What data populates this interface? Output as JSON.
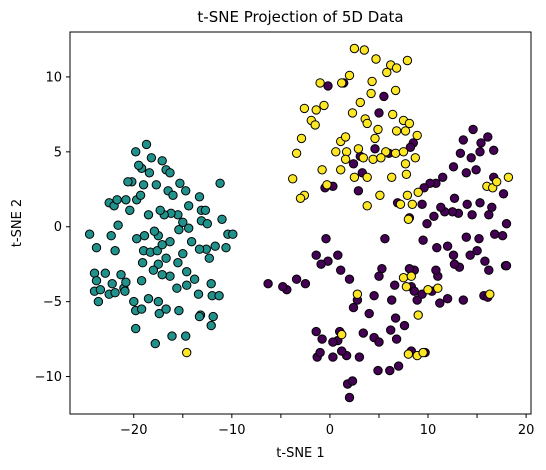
{
  "chart_data": {
    "type": "scatter",
    "title": "t-SNE Projection of 5D Data",
    "xlabel": "t-SNE 1",
    "ylabel": "t-SNE 2",
    "xlim": [
      -26.5,
      20.5
    ],
    "ylim": [
      -12.5,
      13.0
    ],
    "xticks": [
      -20,
      -15,
      -10,
      -5,
      0,
      5,
      10,
      15,
      20
    ],
    "xtick_labels": [
      "−20",
      "",
      "−10",
      "",
      "0",
      "",
      "10",
      "",
      "20"
    ],
    "yticks": [
      -10,
      -5,
      0,
      5,
      10
    ],
    "ytick_labels": [
      "−10",
      "−5",
      "0",
      "5",
      "10"
    ],
    "grid": false,
    "legend": "none",
    "series": [
      {
        "color": "#440154",
        "points": [
          [
            2.0,
            -11.4
          ],
          [
            1.8,
            -10.5
          ],
          [
            2.3,
            -10.3
          ],
          [
            0.3,
            -8.7
          ],
          [
            1.7,
            -8.6
          ],
          [
            3.0,
            -8.7
          ],
          [
            4.9,
            -9.6
          ],
          [
            6.1,
            -9.6
          ],
          [
            7.0,
            -9.3
          ],
          [
            -1.3,
            -8.7
          ],
          [
            -1.0,
            -8.4
          ],
          [
            1.2,
            -8.3
          ],
          [
            0.8,
            -7.6
          ],
          [
            -1.4,
            -7.0
          ],
          [
            -0.8,
            -7.5
          ],
          [
            0.3,
            -7.7
          ],
          [
            1.0,
            -7.0
          ],
          [
            3.4,
            -7.1
          ],
          [
            4.5,
            -7.4
          ],
          [
            5.0,
            -7.7
          ],
          [
            6.8,
            -7.5
          ],
          [
            8.3,
            -8.3
          ],
          [
            9.7,
            -8.4
          ],
          [
            7.6,
            -6.6
          ],
          [
            6.2,
            -6.9
          ],
          [
            6.7,
            -6.1
          ],
          [
            4.0,
            -5.8
          ],
          [
            2.4,
            -5.4
          ],
          [
            2.8,
            -4.9
          ],
          [
            4.5,
            -4.6
          ],
          [
            6.3,
            -4.9
          ],
          [
            6.6,
            -3.9
          ],
          [
            8.3,
            -4.0
          ],
          [
            8.6,
            -4.3
          ],
          [
            8.9,
            -4.9
          ],
          [
            9.4,
            -4.5
          ],
          [
            10.4,
            -4.3
          ],
          [
            11.2,
            -5.1
          ],
          [
            12.0,
            -4.8
          ],
          [
            13.6,
            -4.9
          ],
          [
            15.7,
            -4.6
          ],
          [
            16.1,
            -4.7
          ],
          [
            17.9,
            -2.6
          ],
          [
            18.0,
            -2.6
          ],
          [
            16.2,
            -2.9
          ],
          [
            15.8,
            -2.3
          ],
          [
            15.0,
            -1.6
          ],
          [
            14.3,
            -1.9
          ],
          [
            13.2,
            -2.7
          ],
          [
            12.7,
            -2.5
          ],
          [
            11.0,
            -3.3
          ],
          [
            10.8,
            -2.9
          ],
          [
            8.6,
            -2.9
          ],
          [
            8.1,
            -2.8
          ],
          [
            5.3,
            -2.8
          ],
          [
            5.0,
            -3.3
          ],
          [
            2.0,
            -3.5
          ],
          [
            1.1,
            -2.9
          ],
          [
            -0.2,
            -2.3
          ],
          [
            -0.9,
            -2.5
          ],
          [
            -1.4,
            -1.9
          ],
          [
            -0.4,
            -0.8
          ],
          [
            0.8,
            -1.9
          ],
          [
            5.6,
            -0.8
          ],
          [
            9.5,
            -0.9
          ],
          [
            10.9,
            -1.4
          ],
          [
            12.0,
            -1.3
          ],
          [
            12.6,
            -1.9
          ],
          [
            13.9,
            -0.7
          ],
          [
            15.2,
            -0.8
          ],
          [
            16.8,
            -0.5
          ],
          [
            17.6,
            -0.6
          ],
          [
            18.0,
            0.2
          ],
          [
            16.2,
            0.8
          ],
          [
            14.5,
            0.8
          ],
          [
            13.1,
            0.9
          ],
          [
            12.5,
            1.0
          ],
          [
            11.7,
            1.0
          ],
          [
            10.6,
            0.7
          ],
          [
            9.9,
            0.2
          ],
          [
            9.4,
            1.5
          ],
          [
            11.3,
            1.3
          ],
          [
            12.7,
            1.9
          ],
          [
            14.0,
            1.5
          ],
          [
            15.3,
            1.6
          ],
          [
            16.5,
            1.3
          ],
          [
            17.7,
            2.2
          ],
          [
            16.7,
            3.3
          ],
          [
            14.9,
            3.8
          ],
          [
            13.9,
            3.6
          ],
          [
            12.6,
            4.0
          ],
          [
            11.5,
            3.3
          ],
          [
            10.8,
            2.9
          ],
          [
            10.2,
            2.9
          ],
          [
            9.6,
            2.6
          ],
          [
            6.9,
            1.6
          ],
          [
            13.3,
            4.9
          ],
          [
            14.4,
            4.6
          ],
          [
            15.3,
            5.0
          ],
          [
            16.1,
            6.0
          ],
          [
            16.7,
            5.1
          ],
          [
            14.6,
            6.5
          ],
          [
            13.6,
            5.8
          ],
          [
            15.4,
            5.6
          ],
          [
            8.5,
            5.6
          ],
          [
            8.2,
            5.3
          ],
          [
            6.0,
            4.9
          ],
          [
            4.6,
            5.2
          ],
          [
            3.1,
            4.7
          ],
          [
            2.4,
            4.2
          ],
          [
            3.3,
            3.6
          ],
          [
            0.3,
            2.7
          ],
          [
            -0.5,
            2.6
          ],
          [
            2.9,
            2.4
          ],
          [
            8.1,
            0.6
          ],
          [
            -0.2,
            9.4
          ],
          [
            1.4,
            9.6
          ],
          [
            5.5,
            8.7
          ],
          [
            5.0,
            7.6
          ],
          [
            -3.4,
            -3.5
          ],
          [
            -2.5,
            -3.8
          ],
          [
            -4.4,
            -4.2
          ],
          [
            -4.8,
            -4.0
          ],
          [
            -6.3,
            -3.8
          ]
        ]
      },
      {
        "color": "#21918c",
        "points": [
          [
            -24.5,
            -0.5
          ],
          [
            -23.8,
            -1.4
          ],
          [
            -24.0,
            -3.1
          ],
          [
            -23.8,
            -3.6
          ],
          [
            -23.6,
            -5.0
          ],
          [
            -24.0,
            -4.3
          ],
          [
            -23.4,
            -4.2
          ],
          [
            -22.9,
            -3.1
          ],
          [
            -22.2,
            -3.8
          ],
          [
            -22.5,
            -4.5
          ],
          [
            -21.9,
            -4.4
          ],
          [
            -21.0,
            -4.1
          ],
          [
            -20.9,
            -4.3
          ],
          [
            -20.8,
            -3.7
          ],
          [
            -21.3,
            -3.2
          ],
          [
            -21.9,
            -1.6
          ],
          [
            -22.3,
            -0.6
          ],
          [
            -21.6,
            0.1
          ],
          [
            -22.5,
            1.6
          ],
          [
            -22.0,
            1.4
          ],
          [
            -21.7,
            1.8
          ],
          [
            -20.4,
            1.1
          ],
          [
            -20.8,
            1.8
          ],
          [
            -19.7,
            1.8
          ],
          [
            -19.3,
            2.1
          ],
          [
            -19.0,
            2.8
          ],
          [
            -19.2,
            3.9
          ],
          [
            -20.2,
            3.0
          ],
          [
            -20.6,
            3.0
          ],
          [
            -19.5,
            4.1
          ],
          [
            -19.8,
            5.0
          ],
          [
            -18.7,
            5.5
          ],
          [
            -18.2,
            4.6
          ],
          [
            -18.4,
            3.6
          ],
          [
            -17.1,
            4.4
          ],
          [
            -17.7,
            2.8
          ],
          [
            -16.7,
            3.8
          ],
          [
            -16.3,
            3.6
          ],
          [
            -16.5,
            2.4
          ],
          [
            -16.0,
            2.1
          ],
          [
            -15.3,
            2.9
          ],
          [
            -14.7,
            2.4
          ],
          [
            -14.4,
            1.4
          ],
          [
            -13.3,
            2.0
          ],
          [
            -13.1,
            1.1
          ],
          [
            -13.1,
            0.4
          ],
          [
            -12.7,
            1.1
          ],
          [
            -12.5,
            0.2
          ],
          [
            -11.2,
            2.9
          ],
          [
            -11.0,
            0.5
          ],
          [
            -10.4,
            -0.5
          ],
          [
            -9.9,
            -0.5
          ],
          [
            -10.6,
            -1.4
          ],
          [
            -11.7,
            -1.3
          ],
          [
            -12.3,
            -2.1
          ],
          [
            -12.6,
            -1.5
          ],
          [
            -13.3,
            -1.5
          ],
          [
            -14.1,
            -1.0
          ],
          [
            -14.4,
            -0.1
          ],
          [
            -15.0,
            0.3
          ],
          [
            -15.4,
            -0.2
          ],
          [
            -15.5,
            0.8
          ],
          [
            -16.2,
            0.9
          ],
          [
            -16.9,
            0.8
          ],
          [
            -17.3,
            1.1
          ],
          [
            -17.5,
            -0.6
          ],
          [
            -17.9,
            -0.3
          ],
          [
            -18.5,
            0.8
          ],
          [
            -18.9,
            -0.6
          ],
          [
            -19.7,
            -0.8
          ],
          [
            -19.0,
            -1.6
          ],
          [
            -18.3,
            -1.7
          ],
          [
            -17.6,
            -1.6
          ],
          [
            -17.1,
            -1.2
          ],
          [
            -16.3,
            -1.0
          ],
          [
            -16.7,
            -2.1
          ],
          [
            -16.3,
            -3.3
          ],
          [
            -17.1,
            -3.2
          ],
          [
            -17.5,
            -2.5
          ],
          [
            -18.0,
            -2.9
          ],
          [
            -19.1,
            -2.4
          ],
          [
            -19.2,
            -3.6
          ],
          [
            -18.5,
            -4.8
          ],
          [
            -17.5,
            -5.0
          ],
          [
            -17.4,
            -5.8
          ],
          [
            -16.7,
            -5.5
          ],
          [
            -15.4,
            -5.6
          ],
          [
            -15.6,
            -4.1
          ],
          [
            -14.6,
            -3.9
          ],
          [
            -14.6,
            -3.0
          ],
          [
            -13.8,
            -3.5
          ],
          [
            -13.4,
            -4.5
          ],
          [
            -13.2,
            -5.9
          ],
          [
            -12.0,
            -4.6
          ],
          [
            -12.1,
            -3.8
          ],
          [
            -11.3,
            -4.6
          ],
          [
            -11.9,
            -6.0
          ],
          [
            -12.1,
            -6.6
          ],
          [
            -13.3,
            -6.0
          ],
          [
            -14.7,
            -7.3
          ],
          [
            -16.1,
            -7.3
          ],
          [
            -17.8,
            -7.8
          ],
          [
            -19.8,
            -6.8
          ],
          [
            -19.8,
            -5.6
          ],
          [
            -19.2,
            -5.5
          ],
          [
            -20.0,
            -5.0
          ],
          [
            -15.5,
            -2.4
          ],
          [
            -15.0,
            -1.8
          ]
        ]
      },
      {
        "color": "#fde725",
        "points": [
          [
            -14.6,
            -8.4
          ],
          [
            2.5,
            11.9
          ],
          [
            3.5,
            11.8
          ],
          [
            4.7,
            11.2
          ],
          [
            6.2,
            10.8
          ],
          [
            7.9,
            11.1
          ],
          [
            -1.0,
            9.6
          ],
          [
            1.2,
            9.6
          ],
          [
            2.0,
            10.1
          ],
          [
            4.3,
            9.7
          ],
          [
            5.8,
            10.3
          ],
          [
            6.8,
            10.6
          ],
          [
            4.2,
            8.9
          ],
          [
            3.1,
            8.3
          ],
          [
            6.7,
            9.1
          ],
          [
            -2.6,
            7.9
          ],
          [
            -1.4,
            7.8
          ],
          [
            -0.6,
            8.1
          ],
          [
            2.3,
            7.6
          ],
          [
            3.6,
            7.2
          ],
          [
            7.5,
            7.1
          ],
          [
            8.1,
            6.9
          ],
          [
            -1.9,
            7.1
          ],
          [
            -1.5,
            6.8
          ],
          [
            3.8,
            6.9
          ],
          [
            4.9,
            6.5
          ],
          [
            6.4,
            7.5
          ],
          [
            7.7,
            6.4
          ],
          [
            8.9,
            6.1
          ],
          [
            -2.9,
            5.9
          ],
          [
            1.1,
            5.7
          ],
          [
            1.6,
            6.0
          ],
          [
            4.6,
            5.9
          ],
          [
            6.8,
            6.4
          ],
          [
            0.6,
            5.0
          ],
          [
            1.7,
            5.0
          ],
          [
            2.9,
            5.2
          ],
          [
            5.7,
            5.0
          ],
          [
            6.7,
            4.9
          ],
          [
            7.5,
            5.0
          ],
          [
            8.7,
            4.6
          ],
          [
            -3.4,
            4.9
          ],
          [
            1.1,
            3.8
          ],
          [
            1.6,
            4.5
          ],
          [
            3.4,
            4.6
          ],
          [
            4.4,
            4.5
          ],
          [
            5.2,
            4.6
          ],
          [
            7.7,
            4.2
          ],
          [
            -0.8,
            3.8
          ],
          [
            2.5,
            3.3
          ],
          [
            3.8,
            3.3
          ],
          [
            6.3,
            3.3
          ],
          [
            7.8,
            3.5
          ],
          [
            -3.8,
            3.2
          ],
          [
            -0.3,
            2.8
          ],
          [
            -2.6,
            2.1
          ],
          [
            -3.0,
            1.9
          ],
          [
            3.8,
            1.4
          ],
          [
            5.1,
            2.1
          ],
          [
            7.2,
            1.5
          ],
          [
            7.9,
            2.1
          ],
          [
            8.4,
            1.5
          ],
          [
            9.0,
            2.3
          ],
          [
            8.0,
            0.5
          ],
          [
            16.0,
            2.7
          ],
          [
            16.6,
            2.6
          ],
          [
            18.2,
            3.3
          ],
          [
            17.0,
            3.0
          ],
          [
            7.5,
            -3.4
          ],
          [
            8.3,
            -3.3
          ],
          [
            7.8,
            -4.0
          ],
          [
            10.0,
            -4.2
          ],
          [
            11.0,
            -4.1
          ],
          [
            9.0,
            -5.9
          ],
          [
            8.9,
            -8.6
          ],
          [
            9.5,
            -8.4
          ],
          [
            8.0,
            -8.5
          ],
          [
            2.8,
            -4.5
          ],
          [
            1.2,
            -7.2
          ],
          [
            16.3,
            -4.5
          ]
        ]
      }
    ]
  }
}
